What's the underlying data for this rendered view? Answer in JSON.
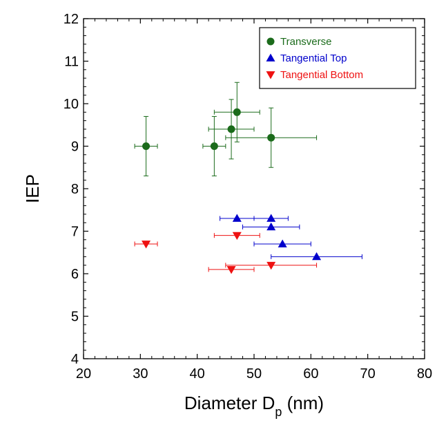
{
  "chart_data": {
    "type": "scatter",
    "title": "",
    "xlabel": "Diameter D",
    "xlabel_subscript": "p",
    "xlabel_unit": "(nm)",
    "ylabel": "IEP",
    "xlim": [
      20,
      80
    ],
    "ylim": [
      4,
      12
    ],
    "x_ticks": [
      20,
      30,
      40,
      50,
      60,
      70,
      80
    ],
    "y_ticks": [
      4,
      5,
      6,
      7,
      8,
      9,
      10,
      11,
      12
    ],
    "grid": false,
    "legend_position": "top-right",
    "series": [
      {
        "name": "Transverse",
        "marker": "circle",
        "color": "#1b6b1b",
        "points": [
          {
            "x": 31,
            "y": 9.0,
            "xerr": 2,
            "yerr": 0.7
          },
          {
            "x": 43,
            "y": 9.0,
            "xerr": 2,
            "yerr": 0.7
          },
          {
            "x": 46,
            "y": 9.4,
            "xerr": 4,
            "yerr": 0.7
          },
          {
            "x": 47,
            "y": 9.8,
            "xerr": 4,
            "yerr": 0.7
          },
          {
            "x": 53,
            "y": 9.2,
            "xerr": 8,
            "yerr": 0.7
          }
        ]
      },
      {
        "name": "Tangential Top",
        "marker": "triangle-up",
        "color": "#0000cc",
        "points": [
          {
            "x": 47,
            "y": 7.3,
            "xerr": 3,
            "yerr": 0
          },
          {
            "x": 53,
            "y": 7.3,
            "xerr": 3,
            "yerr": 0
          },
          {
            "x": 53,
            "y": 7.1,
            "xerr": 5,
            "yerr": 0
          },
          {
            "x": 55,
            "y": 6.7,
            "xerr": 5,
            "yerr": 0
          },
          {
            "x": 61,
            "y": 6.4,
            "xerr": 8,
            "yerr": 0
          }
        ]
      },
      {
        "name": "Tangential Bottom",
        "marker": "triangle-down",
        "color": "#ee1111",
        "points": [
          {
            "x": 31,
            "y": 6.7,
            "xerr": 2,
            "yerr": 0
          },
          {
            "x": 47,
            "y": 6.9,
            "xerr": 4,
            "yerr": 0
          },
          {
            "x": 46,
            "y": 6.1,
            "xerr": 4,
            "yerr": 0
          },
          {
            "x": 53,
            "y": 6.2,
            "xerr": 8,
            "yerr": 0
          }
        ]
      }
    ]
  }
}
